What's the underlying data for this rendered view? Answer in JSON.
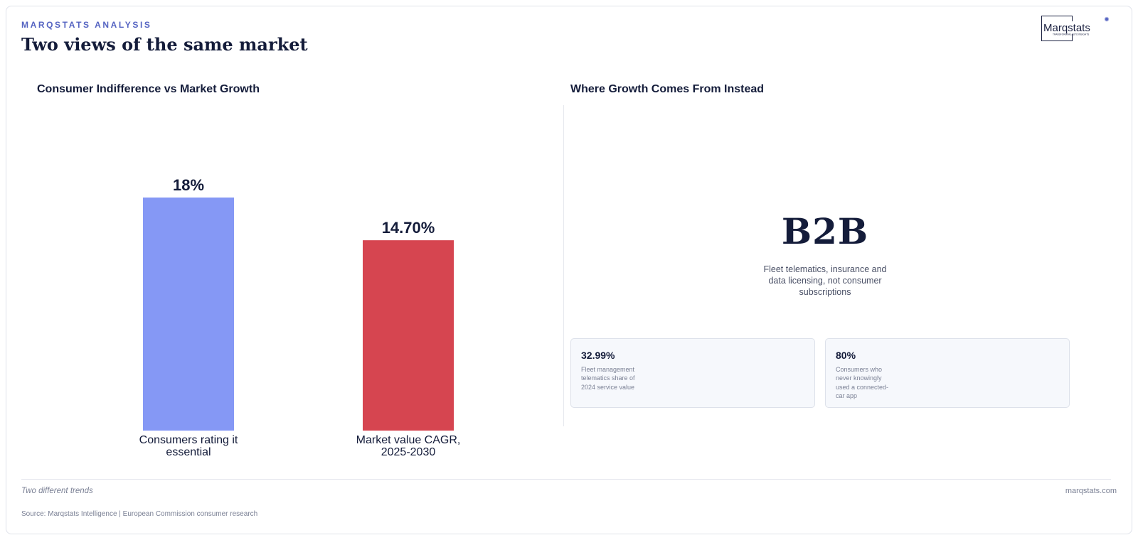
{
  "header": {
    "kicker": "MARQSTATS ANALYSIS",
    "title": "Two views of the same market",
    "logo_text": "Marqstats",
    "logo_tagline": "TRANSFORMING AUTO INSIGHTS"
  },
  "left_panel": {
    "title": "Consumer Indifference vs Market Growth"
  },
  "chart_data": {
    "type": "bar",
    "title": "Consumer Indifference vs Market Growth",
    "categories": [
      "Consumers rating it essential",
      "Market value CAGR, 2025-2030"
    ],
    "category_lines": [
      [
        "Consumers rating it",
        "essential"
      ],
      [
        "Market value CAGR,",
        "2025-2030"
      ]
    ],
    "values": [
      18,
      14.7
    ],
    "value_labels": [
      "18%",
      "14.70%"
    ],
    "colors": [
      "#8598f5",
      "#d64550"
    ],
    "ylim": [
      0,
      18
    ],
    "grid": false,
    "legend": "none",
    "xlabel": "",
    "ylabel": ""
  },
  "right_panel": {
    "title": "Where Growth Comes From Instead",
    "headline": "B2B",
    "description": "Fleet telematics, insurance and data licensing, not consumer subscriptions",
    "stats": [
      {
        "value": "32.99%",
        "label": "Fleet management telematics share of 2024 service value"
      },
      {
        "value": "80%",
        "label": "Consumers who never knowingly used a connected-car app"
      }
    ]
  },
  "footer": {
    "note": "Two different trends",
    "domain": "marqstats.com",
    "source": "Source: Marqstats Intelligence | European Commission consumer research"
  },
  "colors": {
    "accent": "#5564c2",
    "bar_primary": "#8598f5",
    "bar_secondary": "#d64550",
    "text_dark": "#141c3a"
  }
}
